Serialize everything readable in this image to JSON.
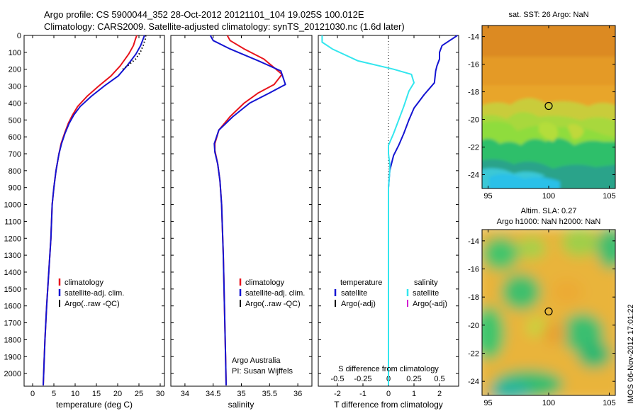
{
  "header": {
    "line1": "Argo profile: CS 5900044_352 28-Oct-2012 20121101_104 19.025S 100.012E",
    "line2": "Climatology: CARS2009. Satellite-adjusted climatology: synTS_20121030.nc (1.6d later)"
  },
  "side_stamp": "IMOS 06-Nov-2012 17:01:22",
  "colors": {
    "climatology": "#e8141c",
    "satellite": "#1414d2",
    "argo": "#000000",
    "sal_satellite": "#33e6ee",
    "sal_argo": "#d21fd2",
    "zero_line": "#000000"
  },
  "chart_data": [
    {
      "type": "line",
      "panel": "temperature",
      "xlabel": "temperature (deg C)",
      "xlim": [
        -2,
        31
      ],
      "xticks": [
        0,
        5,
        10,
        15,
        20,
        25,
        30
      ],
      "ylim": [
        2075,
        0
      ],
      "yticks": [
        0,
        100,
        200,
        300,
        400,
        500,
        600,
        700,
        800,
        900,
        1000,
        1100,
        1200,
        1300,
        1400,
        1500,
        1600,
        1700,
        1800,
        1900,
        2000
      ],
      "legend_labels": [
        "climatology",
        "satellite-adj. clim.",
        "Argo(..raw -QC)"
      ],
      "series": [
        {
          "role": "climatology",
          "style": "solid",
          "points": [
            [
              24.5,
              0
            ],
            [
              24.2,
              20
            ],
            [
              23.7,
              60
            ],
            [
              22.6,
              110
            ],
            [
              20.6,
              180
            ],
            [
              18.4,
              240
            ],
            [
              15.5,
              300
            ],
            [
              12.8,
              360
            ],
            [
              10.6,
              420
            ],
            [
              9.4,
              470
            ],
            [
              8.4,
              520
            ],
            [
              7.5,
              580
            ],
            [
              6.7,
              640
            ],
            [
              6.2,
              700
            ],
            [
              5.5,
              800
            ],
            [
              5.0,
              900
            ],
            [
              4.6,
              1000
            ],
            [
              4.3,
              1200
            ],
            [
              3.8,
              1400
            ],
            [
              3.3,
              1600
            ],
            [
              2.9,
              1800
            ],
            [
              2.6,
              2000
            ],
            [
              2.5,
              2070
            ]
          ]
        },
        {
          "role": "satellite",
          "style": "solid",
          "points": [
            [
              26.3,
              0
            ],
            [
              26.0,
              20
            ],
            [
              25.4,
              60
            ],
            [
              24.3,
              110
            ],
            [
              22.2,
              180
            ],
            [
              20.1,
              240
            ],
            [
              16.8,
              300
            ],
            [
              13.8,
              360
            ],
            [
              11.2,
              420
            ],
            [
              9.7,
              470
            ],
            [
              8.6,
              520
            ],
            [
              7.6,
              580
            ],
            [
              6.8,
              640
            ],
            [
              6.2,
              700
            ],
            [
              5.5,
              800
            ],
            [
              5.0,
              900
            ],
            [
              4.6,
              1000
            ],
            [
              4.3,
              1200
            ],
            [
              3.8,
              1400
            ],
            [
              3.3,
              1600
            ],
            [
              2.9,
              1800
            ],
            [
              2.6,
              2000
            ],
            [
              2.5,
              2070
            ]
          ]
        },
        {
          "role": "argo",
          "style": "dotted",
          "points": [
            [
              26.6,
              0
            ],
            [
              26.5,
              20
            ],
            [
              26.0,
              60
            ],
            [
              25.3,
              100
            ],
            [
              24.2,
              140
            ],
            [
              22.3,
              180
            ],
            [
              21.2,
              200
            ]
          ]
        }
      ]
    },
    {
      "type": "line",
      "panel": "salinity",
      "xlabel": "salinity",
      "xlim": [
        33.75,
        36.25
      ],
      "xticks": [
        34,
        34.5,
        35,
        35.5,
        36
      ],
      "ylim": [
        2075,
        0
      ],
      "legend_labels": [
        "climatology",
        "satellite-adj. clim.",
        "Argo(..raw -QC)"
      ],
      "annotation": [
        "Argo Australia",
        "PI: Susan Wijffels"
      ],
      "series": [
        {
          "role": "climatology",
          "style": "solid",
          "points": [
            [
              34.75,
              0
            ],
            [
              34.8,
              30
            ],
            [
              35.05,
              80
            ],
            [
              35.4,
              140
            ],
            [
              35.72,
              230
            ],
            [
              35.58,
              290
            ],
            [
              35.3,
              340
            ],
            [
              35.05,
              400
            ],
            [
              34.8,
              480
            ],
            [
              34.6,
              560
            ],
            [
              34.53,
              640
            ],
            [
              34.53,
              680
            ],
            [
              34.58,
              760
            ],
            [
              34.62,
              860
            ],
            [
              34.65,
              1000
            ],
            [
              34.68,
              1300
            ],
            [
              34.7,
              1600
            ],
            [
              34.72,
              1900
            ],
            [
              34.73,
              2070
            ]
          ]
        },
        {
          "role": "satellite",
          "style": "solid",
          "points": [
            [
              34.45,
              0
            ],
            [
              34.5,
              30
            ],
            [
              34.8,
              80
            ],
            [
              35.3,
              150
            ],
            [
              35.7,
              210
            ],
            [
              35.78,
              290
            ],
            [
              35.5,
              340
            ],
            [
              35.15,
              400
            ],
            [
              34.85,
              480
            ],
            [
              34.6,
              560
            ],
            [
              34.52,
              640
            ],
            [
              34.53,
              690
            ],
            [
              34.58,
              760
            ],
            [
              34.62,
              860
            ],
            [
              34.65,
              1000
            ],
            [
              34.68,
              1300
            ],
            [
              34.7,
              1600
            ],
            [
              34.72,
              1900
            ],
            [
              34.73,
              2070
            ]
          ]
        }
      ]
    },
    {
      "type": "line",
      "panel": "difference",
      "xlabel": "T difference from climatology",
      "xticks": [
        -2,
        -1,
        0,
        1,
        2
      ],
      "x2label": "S difference from climatology",
      "x2ticks": [
        -0.5,
        -0.25,
        0,
        0.25,
        0.5
      ],
      "xlim": [
        -2.75,
        2.75
      ],
      "ylim": [
        2075,
        0
      ],
      "legend": {
        "temperature_title": "temperature",
        "temperature_entries": [
          "satellite",
          "Argo(-adj)"
        ],
        "salinity_title": "salinity",
        "salinity_entries": [
          "satellite",
          "Argo(-adj)"
        ]
      },
      "series": [
        {
          "role": "t_satellite",
          "style": "solid",
          "points": [
            [
              2.7,
              0
            ],
            [
              2.4,
              30
            ],
            [
              2.1,
              60
            ],
            [
              2.0,
              100
            ],
            [
              2.0,
              140
            ],
            [
              1.9,
              180
            ],
            [
              1.85,
              210
            ],
            [
              1.8,
              280
            ],
            [
              1.4,
              350
            ],
            [
              1.0,
              430
            ],
            [
              0.8,
              500
            ],
            [
              0.6,
              580
            ],
            [
              0.4,
              650
            ],
            [
              0.2,
              710
            ],
            [
              0.05,
              800
            ],
            [
              0.0,
              900
            ],
            [
              0.0,
              1000
            ],
            [
              0.0,
              1500
            ],
            [
              0.0,
              2070
            ]
          ]
        },
        {
          "role": "s_satellite",
          "style": "solid",
          "points": [
            [
              -2.6,
              0
            ],
            [
              -2.6,
              40
            ],
            [
              -2.2,
              80
            ],
            [
              -1.2,
              150
            ],
            [
              0.2,
              200
            ],
            [
              0.9,
              230
            ],
            [
              1.0,
              280
            ],
            [
              0.8,
              330
            ],
            [
              0.6,
              420
            ],
            [
              0.4,
              500
            ],
            [
              0.2,
              580
            ],
            [
              0.0,
              650
            ],
            [
              0.0,
              700
            ],
            [
              0.05,
              760
            ],
            [
              0.05,
              800
            ],
            [
              0.0,
              900
            ],
            [
              0.0,
              1200
            ],
            [
              0.0,
              1500
            ],
            [
              0.0,
              1800
            ],
            [
              0.0,
              2070
            ]
          ]
        }
      ]
    }
  ],
  "maps": [
    {
      "name": "sst",
      "title": "sat. SST: 26 Argo: NaN",
      "title2": "",
      "xticks": [
        95,
        100,
        105
      ],
      "yticks": [
        -14,
        -16,
        -18,
        -20,
        -22,
        -24
      ],
      "xlim": [
        94.5,
        105.5
      ],
      "ylim": [
        -25,
        -13.2
      ],
      "marker": [
        100,
        -19.025
      ]
    },
    {
      "name": "sla",
      "title": "Altim. SLA: 0.27",
      "title2": "Argo h1000: NaN h2000: NaN",
      "xticks": [
        95,
        100,
        105
      ],
      "yticks": [
        -14,
        -16,
        -18,
        -20,
        -22,
        -24
      ],
      "xlim": [
        94.5,
        105.5
      ],
      "ylim": [
        -25,
        -13.2
      ],
      "marker": [
        100,
        -19.025
      ]
    }
  ]
}
